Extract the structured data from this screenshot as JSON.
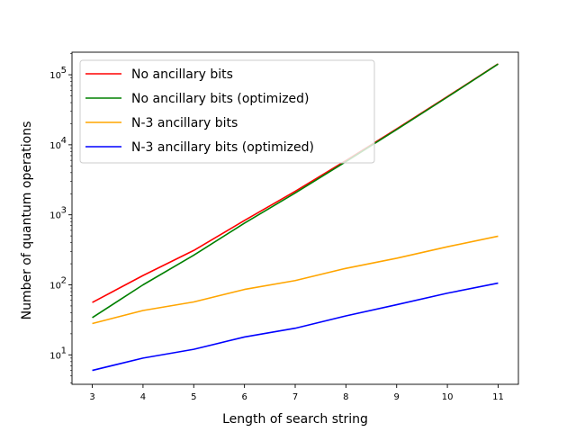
{
  "chart_data": {
    "type": "line",
    "xlabel": "Length of search string",
    "ylabel": "Number of quantum operations",
    "yscale": "log",
    "xlim": [
      2.6,
      11.4
    ],
    "ylim": [
      3.8,
      210000
    ],
    "x": [
      3,
      4,
      5,
      6,
      7,
      8,
      9,
      10,
      11
    ],
    "x_ticks": [
      "3",
      "4",
      "5",
      "6",
      "7",
      "8",
      "9",
      "10",
      "11"
    ],
    "y_ticks": [
      {
        "value": 10,
        "base": "10",
        "exp": "1"
      },
      {
        "value": 100,
        "base": "10",
        "exp": "2"
      },
      {
        "value": 1000,
        "base": "10",
        "exp": "3"
      },
      {
        "value": 10000,
        "base": "10",
        "exp": "4"
      },
      {
        "value": 100000,
        "base": "10",
        "exp": "5"
      }
    ],
    "legend_position": "upper-left",
    "grid": false,
    "series": [
      {
        "name": "No ancillary bits",
        "color": "#ff0000",
        "values": [
          56,
          136,
          310,
          830,
          2170,
          5950,
          16900,
          48800,
          143000
        ]
      },
      {
        "name": "No ancillary bits (optimized)",
        "color": "#008000",
        "values": [
          34,
          100,
          265,
          760,
          2050,
          5750,
          16500,
          48000,
          142000
        ]
      },
      {
        "name": "N-3 ancillary bits",
        "color": "#ffa500",
        "values": [
          28,
          43,
          57,
          86,
          115,
          172,
          240,
          350,
          495
        ]
      },
      {
        "name": "N-3 ancillary bits (optimized)",
        "color": "#0000ff",
        "values": [
          6,
          9,
          12,
          18,
          24,
          36,
          52,
          76,
          106
        ]
      }
    ]
  }
}
